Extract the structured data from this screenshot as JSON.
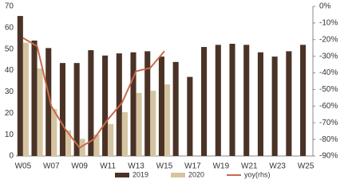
{
  "chart_data": {
    "type": "bar-line",
    "categories": [
      "W05",
      null,
      "W07",
      null,
      "W09",
      null,
      "W11",
      null,
      "W13",
      null,
      "W15",
      null,
      "W17",
      null,
      "W19",
      null,
      "W21",
      null,
      "W23",
      null,
      "W25"
    ],
    "series": [
      {
        "name": "2019",
        "color": "#4a3326",
        "type": "bar",
        "values": [
          65.5,
          54,
          50.5,
          43.5,
          43.5,
          49.5,
          47,
          48,
          48.5,
          49,
          46.5,
          44,
          37,
          51,
          52,
          52.5,
          52,
          48.5,
          46.5,
          49,
          52
        ]
      },
      {
        "name": "2020",
        "color": "#d5c4a1",
        "type": "bar",
        "values": [
          53,
          41,
          22,
          12,
          8,
          10,
          15,
          20.5,
          29.5,
          30.5,
          33.5,
          null,
          null,
          null,
          null,
          null,
          null,
          null,
          null,
          null,
          null
        ]
      },
      {
        "name": "yoy(rhs)",
        "color": "#c9694a",
        "type": "line",
        "axis": "y2",
        "values": [
          -19,
          -24,
          -60,
          -74,
          -85,
          -80,
          -68,
          -58,
          -39,
          -37,
          -27,
          null,
          null,
          null,
          null,
          null,
          null,
          null,
          null,
          null,
          null
        ]
      }
    ],
    "ylim": [
      0,
      70
    ],
    "yticks": [
      0,
      10,
      20,
      30,
      40,
      50,
      60,
      70
    ],
    "y2lim": [
      -90,
      0
    ],
    "y2ticks": [
      {
        "value": 0,
        "label": "0%"
      },
      {
        "value": -10,
        "label": "-10%"
      },
      {
        "value": -20,
        "label": "-20%"
      },
      {
        "value": -30,
        "label": "-30%"
      },
      {
        "value": -40,
        "label": "-40%"
      },
      {
        "value": -50,
        "label": "-50%"
      },
      {
        "value": -60,
        "label": "-60%"
      },
      {
        "value": -70,
        "label": "-70%"
      },
      {
        "value": -80,
        "label": "-80%"
      },
      {
        "value": -90,
        "label": "-90%"
      }
    ],
    "legend": "bottom"
  }
}
